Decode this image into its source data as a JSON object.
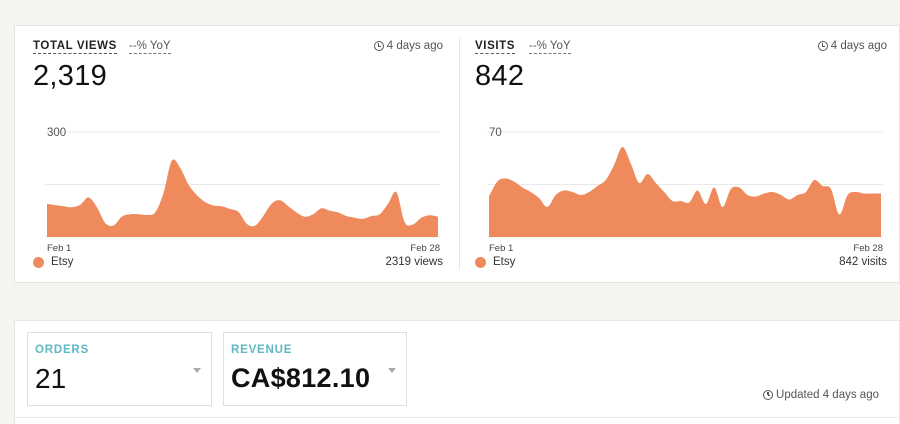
{
  "cards": [
    {
      "title": "TOTAL VIEWS",
      "yoy": "--% YoY",
      "ago": "4 days ago",
      "value": "2,319",
      "legend_label": "Etsy",
      "legend_total": "2319 views",
      "chart_data": {
        "type": "area",
        "title": "",
        "xlabel": "",
        "ylabel": "",
        "x_tick_labels": [
          "Feb 1",
          "Feb 28"
        ],
        "y_tick_labels": [
          "300"
        ],
        "ylim": [
          0,
          300
        ],
        "grid": true,
        "color": "#ee8a5c",
        "series": [
          {
            "name": "Etsy",
            "values": [
              95,
              91,
              88,
              85,
              92,
              113,
              85,
              40,
              33,
              58,
              65,
              65,
              63,
              70,
              125,
              218,
              198,
              150,
              120,
              100,
              90,
              88,
              80,
              72,
              38,
              32,
              60,
              95,
              105,
              88,
              70,
              58,
              65,
              82,
              75,
              70,
              60,
              55,
              52,
              60,
              65,
              95,
              128,
              42,
              36,
              55,
              62,
              58
            ]
          }
        ]
      }
    },
    {
      "title": "VISITS",
      "yoy": "--% YoY",
      "ago": "4 days ago",
      "value": "842",
      "legend_label": "Etsy",
      "legend_total": "842 visits",
      "chart_data": {
        "type": "area",
        "title": "",
        "xlabel": "",
        "ylabel": "",
        "x_tick_labels": [
          "Feb 1",
          "Feb 28"
        ],
        "y_tick_labels": [
          "70"
        ],
        "ylim": [
          0,
          70
        ],
        "grid": true,
        "color": "#ee8a5c",
        "series": [
          {
            "name": "Etsy",
            "values": [
              27,
              37,
              39,
              37,
              33,
              30,
              26,
              20,
              28,
              31,
              30,
              28,
              30,
              34,
              38,
              48,
              60,
              49,
              36,
              42,
              36,
              30,
              24,
              24,
              23,
              31,
              22,
              33,
              20,
              32,
              33,
              28,
              27,
              29,
              30,
              28,
              25,
              28,
              30,
              38,
              34,
              32,
              15,
              28,
              30,
              29,
              29,
              29
            ]
          }
        ]
      }
    }
  ],
  "metrics": {
    "orders": {
      "label": "ORDERS",
      "value": "21"
    },
    "revenue": {
      "label": "REVENUE",
      "value": "CA$812.10"
    }
  },
  "updated": "Updated 4 days ago",
  "icons": {
    "clock": "clock-icon",
    "caret": "caret-down-icon"
  }
}
